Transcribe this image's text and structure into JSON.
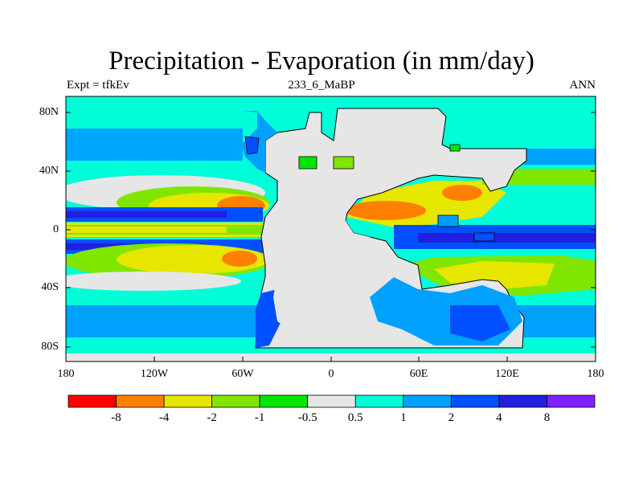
{
  "title": "Precipitation - Evaporation (in mm/day)",
  "subtitle_left": "Expt = tfkEv",
  "subtitle_center": "233_6_MaBP",
  "subtitle_right": "ANN",
  "y_ticks": [
    "80N",
    "40N",
    "0",
    "40S",
    "80S"
  ],
  "x_ticks": [
    "180",
    "120W",
    "60W",
    "0",
    "60E",
    "120E",
    "180"
  ],
  "colorbar": {
    "labels": [
      "-8",
      "-4",
      "-2",
      "-1",
      "-0.5",
      "0.5",
      "1",
      "2",
      "4",
      "8"
    ],
    "colors": [
      "#ff0000",
      "#ff8000",
      "#e6e600",
      "#80e600",
      "#00e600",
      "#e6e6e6",
      "#00ffd9",
      "#00a0ff",
      "#0050ff",
      "#2020e0",
      "#8020ff"
    ]
  },
  "map_colors": {
    "land": "#e6e6e6",
    "cyan": "#00ffd9",
    "lightblue": "#00a0ff",
    "blue": "#0050ff",
    "darkblue": "#2020e0",
    "yellow": "#e6e600",
    "orange": "#ff8000",
    "lightgreen": "#80e600",
    "green": "#00e600"
  }
}
